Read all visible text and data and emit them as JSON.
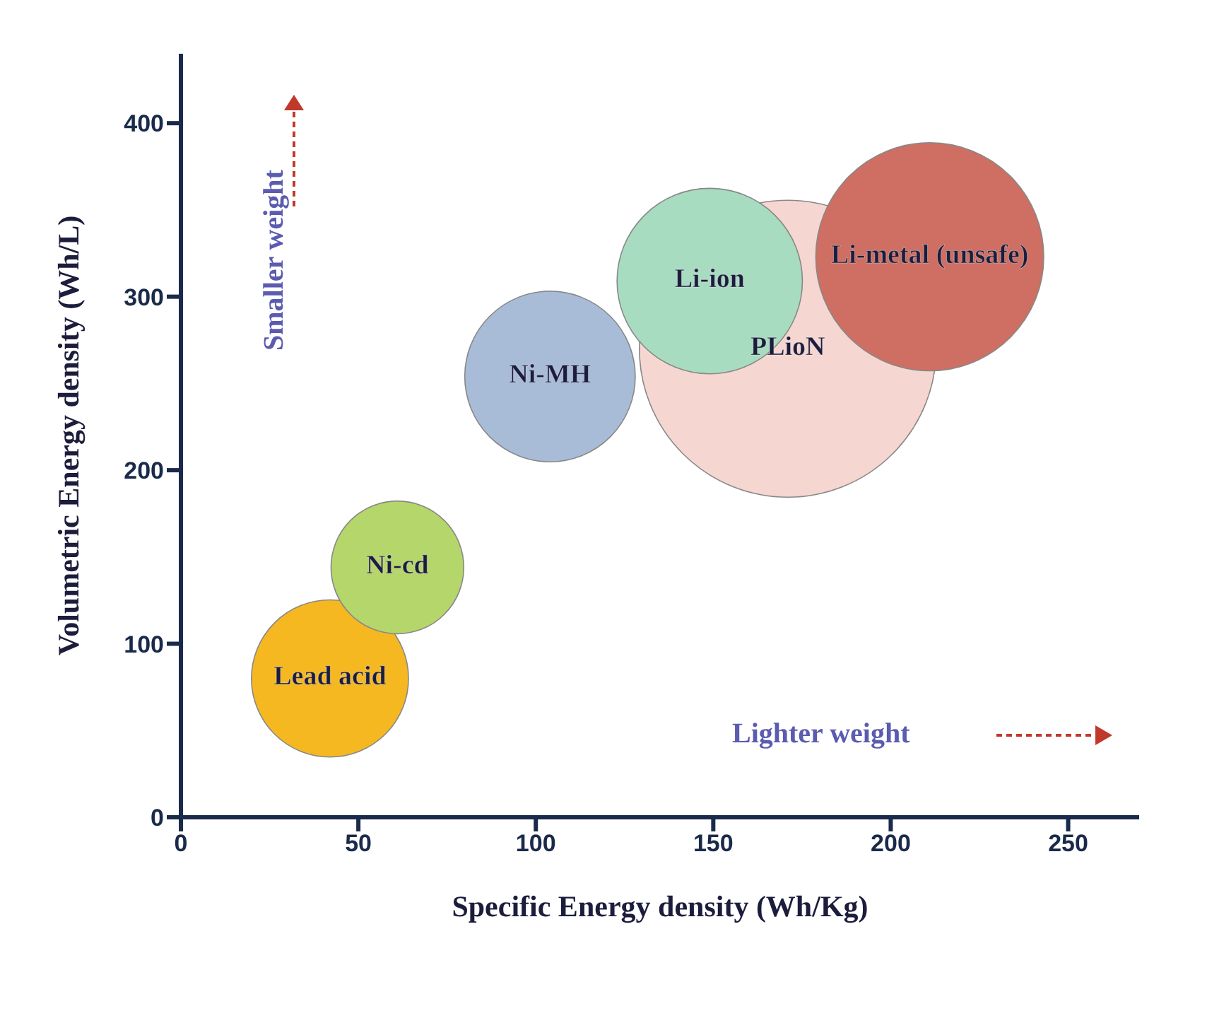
{
  "chart_data": {
    "type": "bubble",
    "xlabel": "Specific Energy density (Wh/Kg)",
    "ylabel": "Volumetric Energy density (Wh/L)",
    "xlim": [
      0,
      270
    ],
    "ylim": [
      0,
      440
    ],
    "xticks": [
      0,
      50,
      100,
      150,
      200,
      250
    ],
    "yticks": [
      0,
      100,
      200,
      300,
      400
    ],
    "grid": false,
    "legend": false,
    "series": [
      {
        "name": "Lead acid",
        "color": "#f5b820",
        "x": [
          42
        ],
        "values": [
          80
        ],
        "sizes": [
          0.28
        ]
      },
      {
        "name": "Ni-cd",
        "color": "#b5d66a",
        "x": [
          61
        ],
        "values": [
          144
        ],
        "sizes": [
          0.2
        ]
      },
      {
        "name": "Ni-MH",
        "color": "#a8bcd8",
        "x": [
          104
        ],
        "values": [
          254
        ],
        "sizes": [
          0.33
        ]
      },
      {
        "name": "PLioN",
        "color": "#f6d6d0",
        "x": [
          171
        ],
        "values": [
          270
        ],
        "sizes": [
          1
        ]
      },
      {
        "name": "Li-ion",
        "color": "#a8dcc0",
        "x": [
          149
        ],
        "values": [
          309
        ],
        "sizes": [
          0.39
        ]
      },
      {
        "name": "Li-metal (unsafe)",
        "color": "#cf6e62",
        "x": [
          211
        ],
        "values": [
          323
        ],
        "sizes": [
          0.59
        ]
      }
    ],
    "annotations": [
      "Smaller weight",
      "Lighter weight"
    ]
  }
}
